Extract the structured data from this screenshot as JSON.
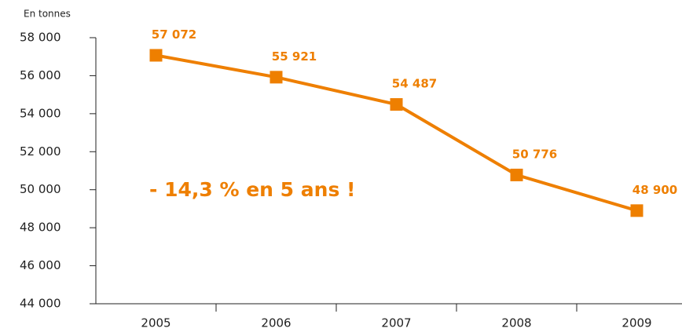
{
  "chart_data": {
    "type": "line",
    "y_label": "En tonnes",
    "annotation": "- 14,3 % en 5 ans !",
    "categories": [
      "2005",
      "2006",
      "2007",
      "2008",
      "2009"
    ],
    "series": [
      {
        "color": "#ee7f00",
        "values": [
          57072,
          55921,
          54487,
          50776,
          48900
        ],
        "value_labels": [
          "57 072",
          "55 921",
          "54 487",
          "50 776",
          "48 900"
        ]
      }
    ],
    "ylim": [
      44000,
      58000
    ],
    "yticks": [
      {
        "value": 44000,
        "label": "44 000"
      },
      {
        "value": 46000,
        "label": "46 000"
      },
      {
        "value": 48000,
        "label": "48 000"
      },
      {
        "value": 50000,
        "label": "50 000"
      },
      {
        "value": 52000,
        "label": "52 000"
      },
      {
        "value": 54000,
        "label": "54 000"
      },
      {
        "value": 56000,
        "label": "56 000"
      },
      {
        "value": 58000,
        "label": "58 000"
      }
    ],
    "grid": false
  }
}
